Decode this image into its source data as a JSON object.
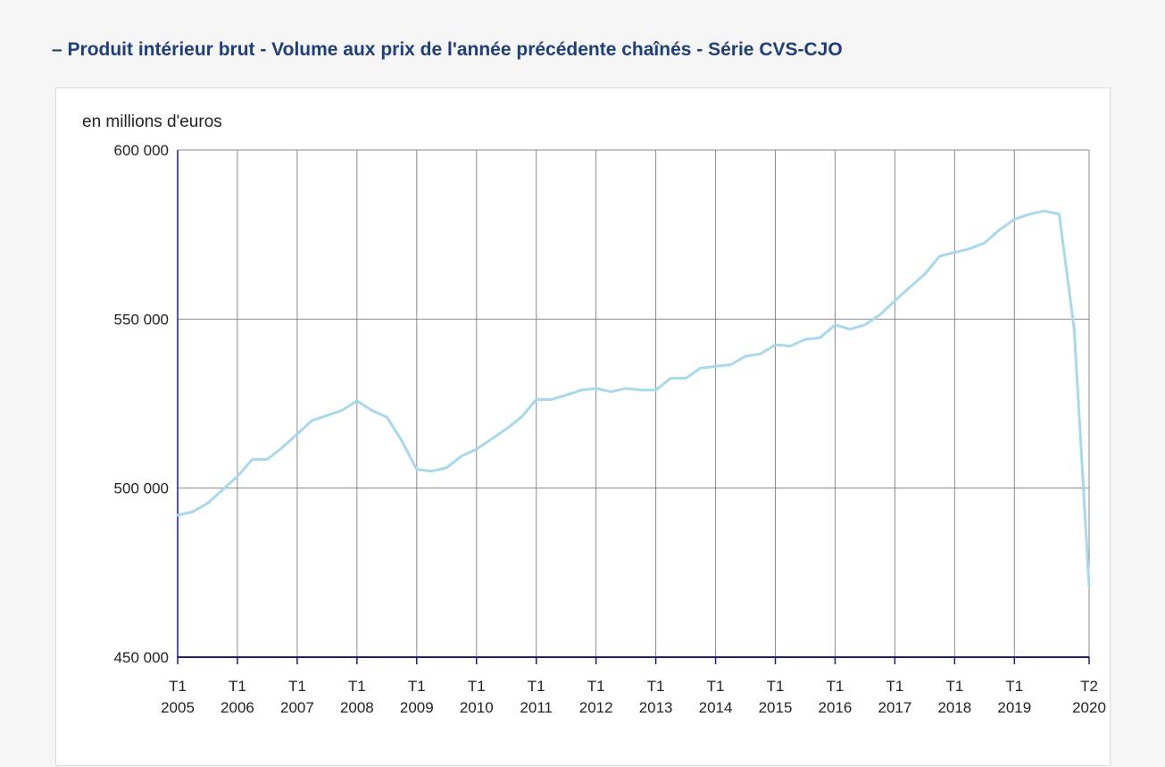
{
  "page": {
    "title": "– Produit intérieur brut - Volume aux prix de l'année précédente chaînés - Série CVS-CJO"
  },
  "colors": {
    "title": "#1f3f78",
    "series": "#a8d8ec",
    "axis": "#1e1e7a",
    "grid": "#8a8a8a"
  },
  "chart_data": {
    "type": "line",
    "ylabel": "en millions d'euros",
    "ylim": [
      450000,
      600000
    ],
    "yticks": [
      {
        "value": 600000,
        "label": "600 000"
      },
      {
        "value": 550000,
        "label": "550 000"
      },
      {
        "value": 500000,
        "label": "500 000"
      },
      {
        "value": 450000,
        "label": "450 000"
      }
    ],
    "xlim": [
      "2005-Q1",
      "2020-Q2"
    ],
    "xticks": [
      {
        "period": "2005-Q1",
        "q": "T1",
        "year": "2005"
      },
      {
        "period": "2006-Q1",
        "q": "T1",
        "year": "2006"
      },
      {
        "period": "2007-Q1",
        "q": "T1",
        "year": "2007"
      },
      {
        "period": "2008-Q1",
        "q": "T1",
        "year": "2008"
      },
      {
        "period": "2009-Q1",
        "q": "T1",
        "year": "2009"
      },
      {
        "period": "2010-Q1",
        "q": "T1",
        "year": "2010"
      },
      {
        "period": "2011-Q1",
        "q": "T1",
        "year": "2011"
      },
      {
        "period": "2012-Q1",
        "q": "T1",
        "year": "2012"
      },
      {
        "period": "2013-Q1",
        "q": "T1",
        "year": "2013"
      },
      {
        "period": "2014-Q1",
        "q": "T1",
        "year": "2014"
      },
      {
        "period": "2015-Q1",
        "q": "T1",
        "year": "2015"
      },
      {
        "period": "2016-Q1",
        "q": "T1",
        "year": "2016"
      },
      {
        "period": "2017-Q1",
        "q": "T1",
        "year": "2017"
      },
      {
        "period": "2018-Q1",
        "q": "T1",
        "year": "2018"
      },
      {
        "period": "2019-Q1",
        "q": "T1",
        "year": "2019"
      },
      {
        "period": "2020-Q2",
        "q": "T2",
        "year": "2020"
      }
    ],
    "grid": true,
    "series": [
      {
        "x": [
          "2005-Q1",
          "2005-Q2",
          "2005-Q3",
          "2005-Q4",
          "2006-Q1",
          "2006-Q2",
          "2006-Q3",
          "2006-Q4",
          "2007-Q1",
          "2007-Q2",
          "2007-Q3",
          "2007-Q4",
          "2008-Q1",
          "2008-Q2",
          "2008-Q3",
          "2008-Q4",
          "2009-Q1",
          "2009-Q2",
          "2009-Q3",
          "2009-Q4",
          "2010-Q1",
          "2010-Q2",
          "2010-Q3",
          "2010-Q4",
          "2011-Q1",
          "2011-Q2",
          "2011-Q3",
          "2011-Q4",
          "2012-Q1",
          "2012-Q2",
          "2012-Q3",
          "2012-Q4",
          "2013-Q1",
          "2013-Q2",
          "2013-Q3",
          "2013-Q4",
          "2014-Q1",
          "2014-Q2",
          "2014-Q3",
          "2014-Q4",
          "2015-Q1",
          "2015-Q2",
          "2015-Q3",
          "2015-Q4",
          "2016-Q1",
          "2016-Q2",
          "2016-Q3",
          "2016-Q4",
          "2017-Q1",
          "2017-Q2",
          "2017-Q3",
          "2017-Q4",
          "2018-Q1",
          "2018-Q2",
          "2018-Q3",
          "2018-Q4",
          "2019-Q1",
          "2019-Q2",
          "2019-Q3",
          "2019-Q4",
          "2020-Q1",
          "2020-Q2"
        ],
        "y": [
          492000,
          493000,
          495500,
          499500,
          503500,
          508500,
          508500,
          512000,
          516000,
          520000,
          521500,
          523000,
          525800,
          523000,
          521000,
          514000,
          505500,
          505000,
          506000,
          509500,
          511500,
          514500,
          517500,
          521000,
          526200,
          526200,
          527500,
          529000,
          529500,
          528500,
          529500,
          529000,
          529000,
          532500,
          532500,
          535500,
          536000,
          536500,
          539000,
          539700,
          542400,
          542000,
          544000,
          544500,
          548300,
          547000,
          548300,
          551300,
          555400,
          559400,
          563300,
          568600,
          569700,
          570800,
          572500,
          576400,
          579500,
          581000,
          582000,
          581000,
          547000,
          471000
        ]
      }
    ]
  }
}
